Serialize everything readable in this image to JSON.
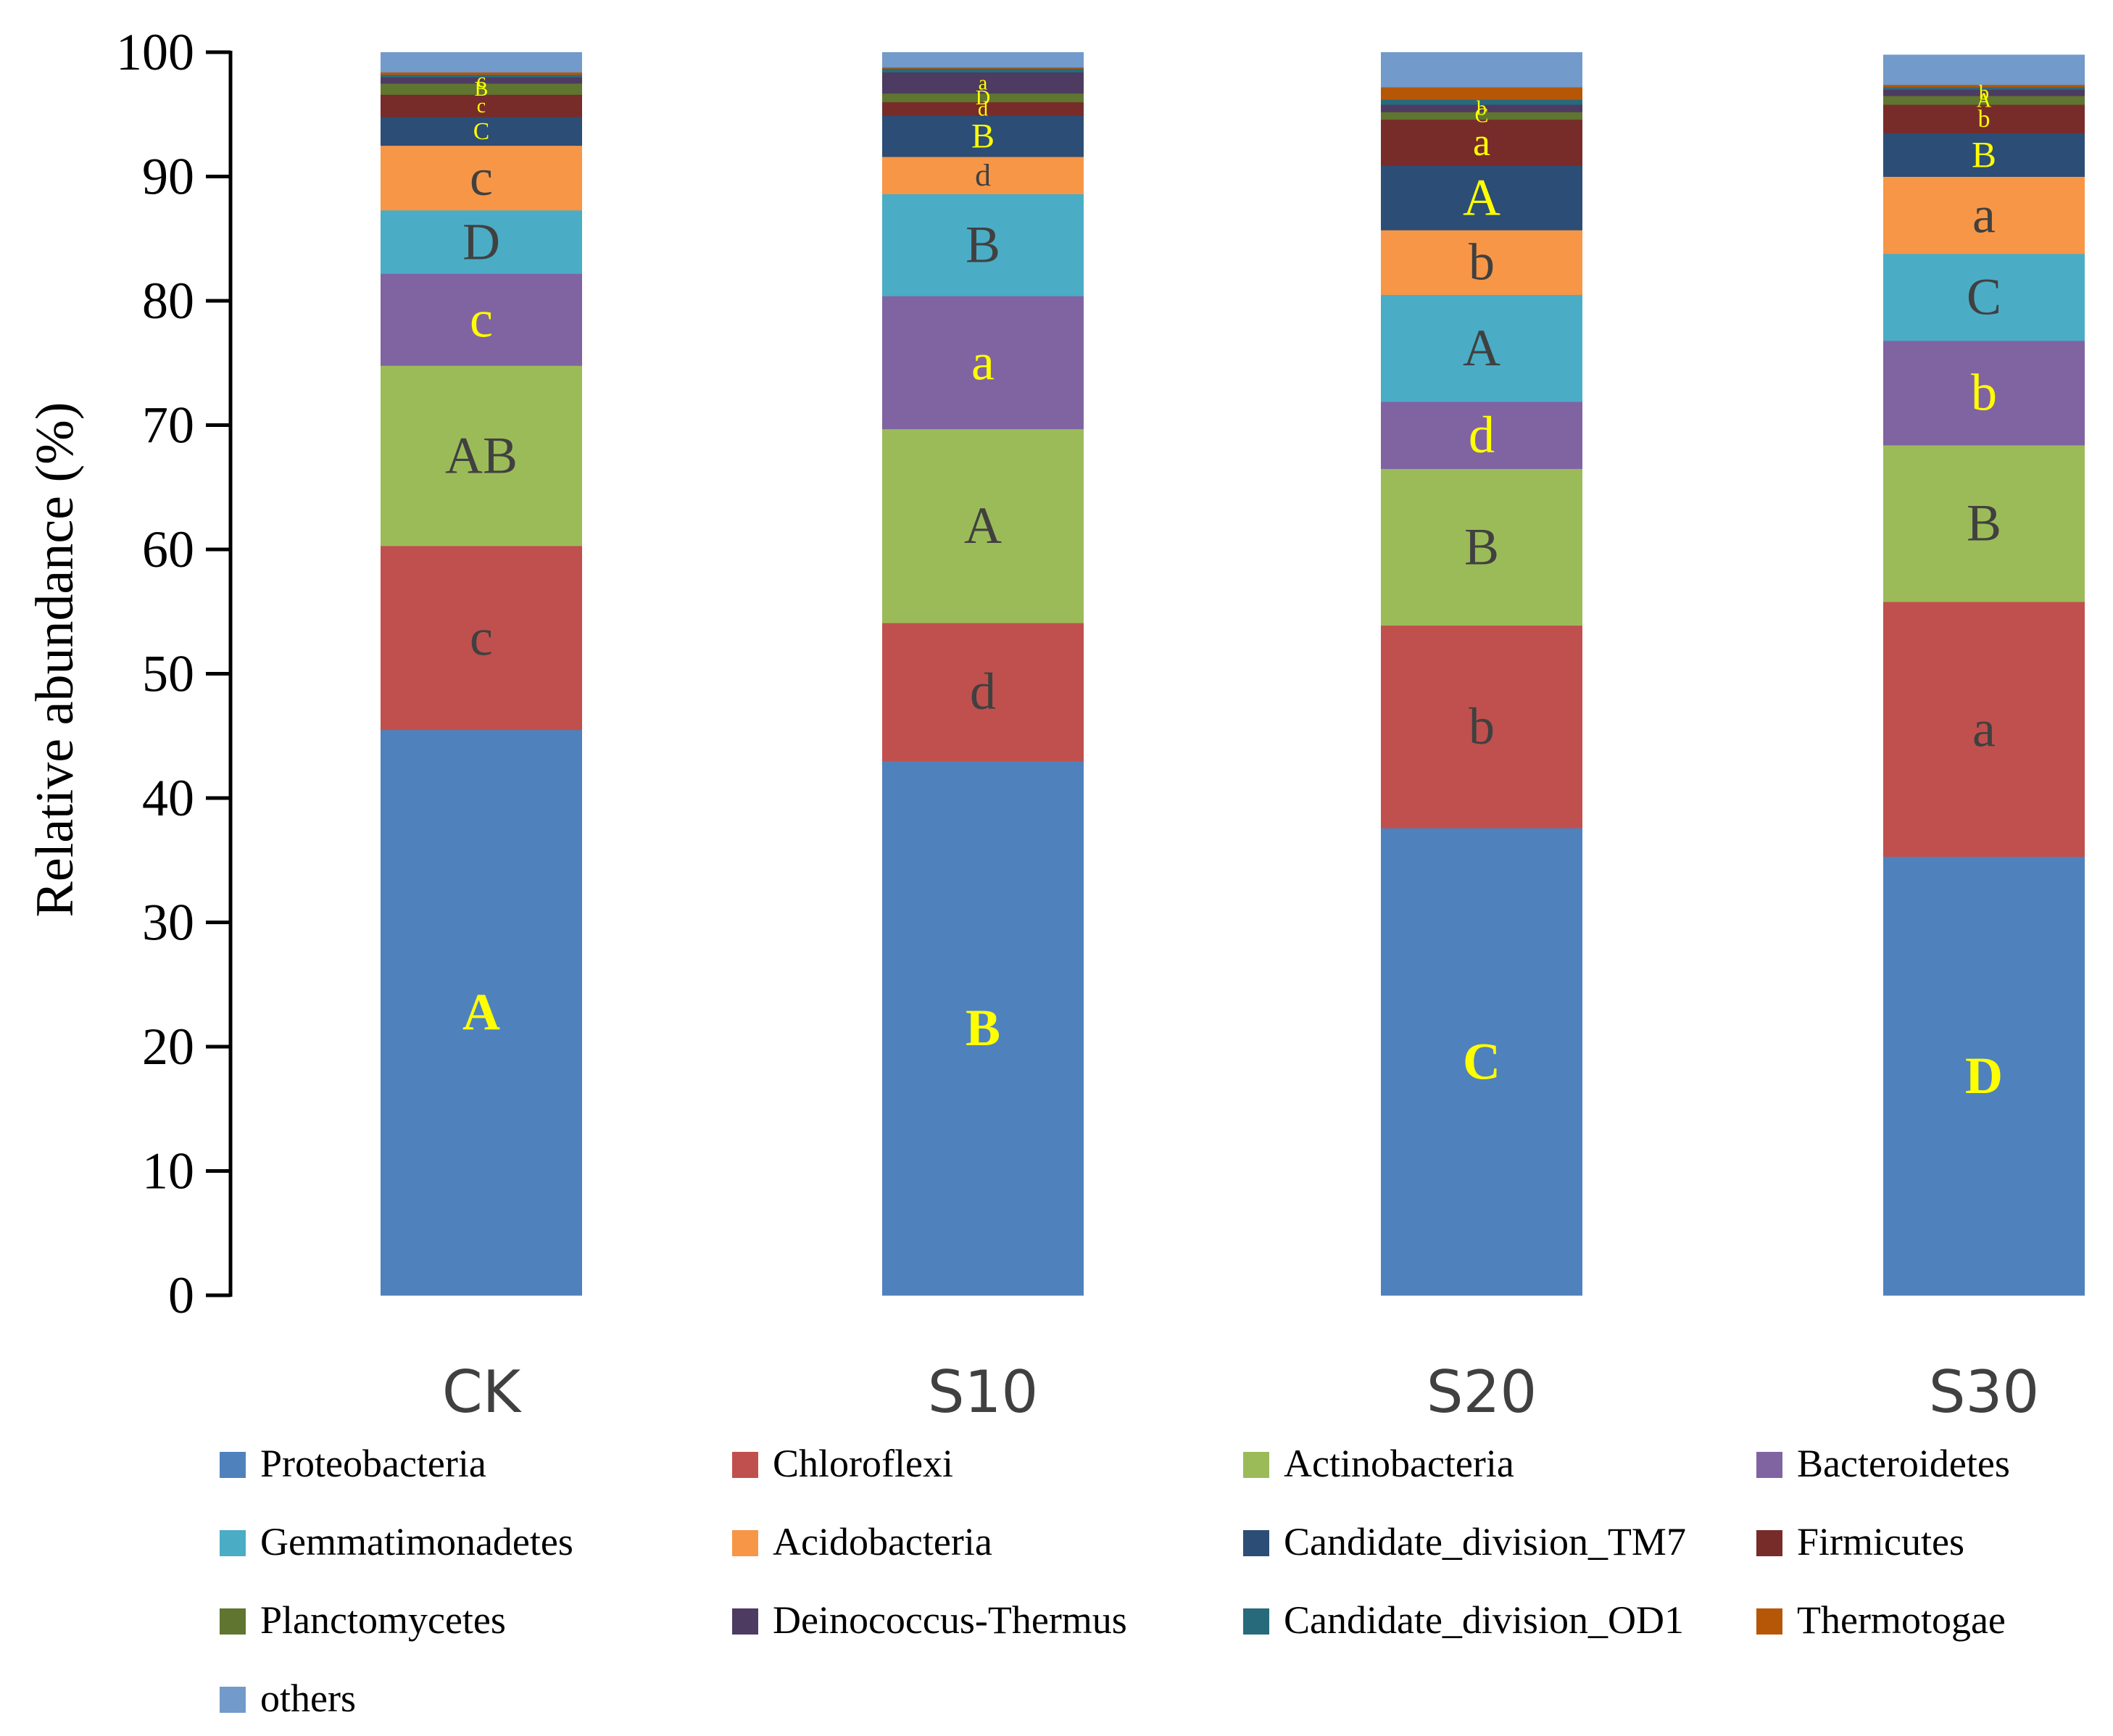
{
  "chart_data": {
    "type": "bar",
    "stacked": true,
    "ylabel": "Relative abundance (%)",
    "ylim": [
      0,
      100
    ],
    "yticks": [
      "0",
      "10",
      "20",
      "30",
      "40",
      "50",
      "60",
      "70",
      "80",
      "90",
      "100"
    ],
    "categories": [
      "CK",
      "S10",
      "S20",
      "S30"
    ],
    "legend_position": "bottom",
    "series": [
      {
        "name": "Proteobacteria",
        "color": "#4F81BD",
        "values": [
          45.5,
          43.0,
          37.6,
          35.3
        ],
        "labels": [
          "A",
          "B",
          "C",
          "D"
        ],
        "label_colors": [
          "#FFFF00",
          "#FFFF00",
          "#FFFF00",
          "#FFFF00"
        ]
      },
      {
        "name": "Chloroflexi",
        "color": "#C0504D",
        "values": [
          14.8,
          11.1,
          16.3,
          20.5
        ],
        "labels": [
          "c",
          "d",
          "b",
          "a"
        ],
        "label_colors": [
          "#404040",
          "#404040",
          "#404040",
          "#404040"
        ]
      },
      {
        "name": "Actinobacteria",
        "color": "#9BBB59",
        "values": [
          14.5,
          15.6,
          12.6,
          12.6
        ],
        "labels": [
          "AB",
          "A",
          "B",
          "B"
        ],
        "label_colors": [
          "#404040",
          "#404040",
          "#404040",
          "#404040"
        ]
      },
      {
        "name": "Bacteroidetes",
        "color": "#8064A2",
        "values": [
          7.4,
          10.7,
          5.4,
          8.4
        ],
        "labels": [
          "c",
          "a",
          "d",
          "b"
        ],
        "label_colors": [
          "#FFFF00",
          "#FFFF00",
          "#FFFF00",
          "#FFFF00"
        ]
      },
      {
        "name": "Gemmatimonadetes",
        "color": "#4BACC6",
        "values": [
          5.1,
          8.2,
          8.6,
          7.0
        ],
        "labels": [
          "D",
          "B",
          "A",
          "C"
        ],
        "label_colors": [
          "#404040",
          "#404040",
          "#404040",
          "#404040"
        ]
      },
      {
        "name": "Acidobacteria",
        "color": "#F79646",
        "values": [
          5.2,
          3.0,
          5.2,
          6.2
        ],
        "labels": [
          "c",
          "d",
          "b",
          "a"
        ],
        "label_colors": [
          "#404040",
          "#404040",
          "#404040",
          "#404040"
        ]
      },
      {
        "name": "Candidate_division_TM7",
        "color": "#2C4D75",
        "values": [
          2.3,
          3.3,
          5.2,
          3.5
        ],
        "labels": [
          "C",
          "B",
          "A",
          "B"
        ],
        "label_colors": [
          "#FFFF00",
          "#FFFF00",
          "#FFFF00",
          "#FFFF00"
        ]
      },
      {
        "name": "Firmicutes",
        "color": "#772C2A",
        "values": [
          1.8,
          1.1,
          3.7,
          2.3
        ],
        "labels": [
          "c",
          "d",
          "a",
          "b"
        ],
        "label_colors": [
          "#FFFF00",
          "#FFFF00",
          "#FFFF00",
          "#FFFF00"
        ]
      },
      {
        "name": "Planctomycetes",
        "color": "#5F7530",
        "values": [
          0.9,
          0.7,
          0.6,
          0.7
        ],
        "labels": [
          "B",
          "D",
          "C",
          "A"
        ],
        "label_colors": [
          "#FFFF00",
          "#FFFF00",
          "#FFFF00",
          "#FFFF00"
        ]
      },
      {
        "name": "Deinococcus-Thermus",
        "color": "#4D3B62",
        "values": [
          0.5,
          1.7,
          0.6,
          0.5
        ],
        "labels": [
          "c",
          "a",
          "b",
          "b"
        ],
        "label_colors": [
          "#FFFF00",
          "#FFFF00",
          "#FFFF00",
          "#FFFF00"
        ]
      },
      {
        "name": "Candidate_division_OD1",
        "color": "#276A7C",
        "values": [
          0.2,
          0.3,
          0.4,
          0.2
        ],
        "labels": [
          "",
          "",
          "",
          ""
        ],
        "label_colors": [
          "#FFFF00",
          "#FFFF00",
          "#FFFF00",
          "#FFFF00"
        ]
      },
      {
        "name": "Thermotogae",
        "color": "#B65708",
        "values": [
          0.2,
          0.1,
          1.0,
          0.2
        ],
        "labels": [
          "",
          "",
          "",
          ""
        ],
        "label_colors": [
          "#FFFF00",
          "#FFFF00",
          "#FFFF00",
          "#FFFF00"
        ]
      },
      {
        "name": "others",
        "color": "#729ACA",
        "values": [
          1.6,
          1.2,
          2.8,
          2.4
        ],
        "labels": [
          "",
          "",
          "",
          ""
        ],
        "label_colors": [
          "#FFFF00",
          "#FFFF00",
          "#FFFF00",
          "#FFFF00"
        ]
      }
    ]
  }
}
